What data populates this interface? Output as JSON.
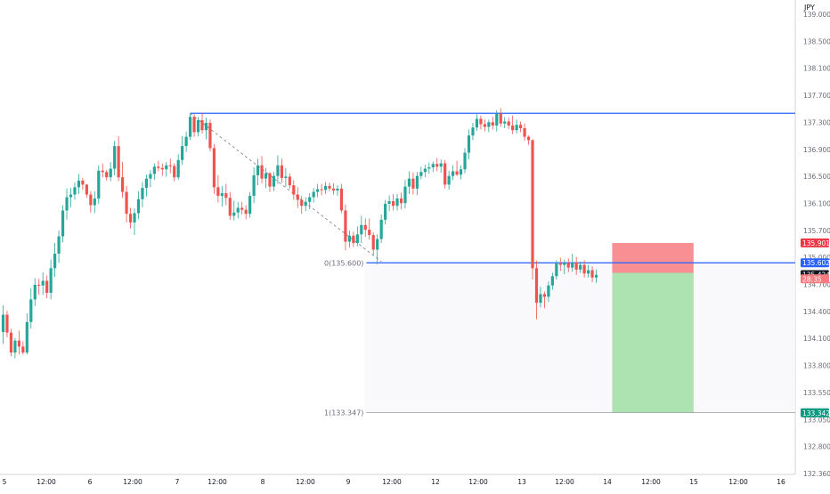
{
  "chart_data": {
    "type": "candlestick",
    "currency": "JPY",
    "ylim": [
      132.36,
      139.4
    ],
    "y_ticks": [
      "139.000",
      "138.500",
      "138.100",
      "137.700",
      "137.300",
      "136.900",
      "136.500",
      "136.100",
      "135.700",
      "135.000",
      "134.700",
      "134.400",
      "134.100",
      "133.800",
      "133.550",
      "133.050",
      "132.800",
      "132.360"
    ],
    "x_ticks": [
      "5",
      "12:00",
      "6",
      "12:00",
      "7",
      "12:00",
      "8",
      "12:00",
      "9",
      "12:00",
      "12",
      "12:00",
      "13",
      "12:00",
      "14",
      "12:00",
      "15",
      "12:00",
      "16"
    ],
    "colors": {
      "up": "#26a69a",
      "down": "#ef5350",
      "line": "#2962ff",
      "stop_zone": "#f77c80",
      "target_zone": "#a3e0a8"
    },
    "horizontal_lines": [
      {
        "value": 137.855,
        "label": "137.855",
        "color": "#2962ff"
      },
      {
        "value": 135.602,
        "label": "135.602",
        "color": "#2962ff"
      }
    ],
    "fib_levels": [
      {
        "text": "0(135.600)",
        "value": 135.6
      },
      {
        "text": "1(133.347)",
        "value": 133.347
      }
    ],
    "price_badges": [
      {
        "label": "135.901",
        "value": 135.901,
        "color": "#f23645"
      },
      {
        "label": "135.602",
        "value": 135.602,
        "color": "#2962ff"
      },
      {
        "label": "135.424",
        "value": 135.424,
        "color": "#131722"
      },
      {
        "label": "28:35",
        "value": 135.36,
        "color": "#f77c80"
      },
      {
        "label": "133.342",
        "value": 133.342,
        "color": "#089981"
      }
    ],
    "position": {
      "entry": 135.45,
      "stop": 135.901,
      "target": 133.342,
      "start_index": 153,
      "end_index": 173
    },
    "trend_line": {
      "from_index": 47,
      "from_value": 137.85,
      "to_index": 95,
      "to_value": 135.62
    },
    "candles": [
      [
        134.56,
        134.96,
        134.38,
        134.82
      ],
      [
        134.82,
        134.88,
        134.48,
        134.55
      ],
      [
        134.55,
        134.61,
        134.19,
        134.25
      ],
      [
        134.25,
        134.47,
        134.16,
        134.43
      ],
      [
        134.43,
        134.58,
        134.22,
        134.34
      ],
      [
        134.34,
        134.42,
        134.22,
        134.25
      ],
      [
        134.25,
        134.84,
        134.22,
        134.71
      ],
      [
        134.71,
        135.22,
        134.61,
        135.05
      ],
      [
        135.05,
        135.37,
        134.95,
        135.27
      ],
      [
        135.27,
        135.36,
        135.12,
        135.26
      ],
      [
        135.26,
        135.46,
        135.12,
        135.33
      ],
      [
        135.33,
        135.41,
        135.07,
        135.15
      ],
      [
        135.15,
        135.65,
        135.05,
        135.52
      ],
      [
        135.52,
        135.9,
        135.39,
        135.74
      ],
      [
        135.74,
        136.09,
        135.6,
        136.0
      ],
      [
        136.0,
        136.47,
        135.91,
        136.39
      ],
      [
        136.39,
        136.72,
        136.25,
        136.59
      ],
      [
        136.59,
        136.73,
        136.44,
        136.63
      ],
      [
        136.63,
        136.81,
        136.55,
        136.74
      ],
      [
        136.74,
        136.94,
        136.64,
        136.84
      ],
      [
        136.84,
        136.88,
        136.7,
        136.78
      ],
      [
        136.78,
        136.79,
        136.58,
        136.63
      ],
      [
        136.63,
        136.68,
        136.36,
        136.47
      ],
      [
        136.47,
        136.68,
        136.35,
        136.57
      ],
      [
        136.57,
        137.07,
        136.49,
        136.99
      ],
      [
        136.99,
        137.1,
        136.89,
        136.97
      ],
      [
        136.97,
        137.0,
        136.84,
        136.89
      ],
      [
        136.89,
        137.12,
        136.83,
        137.02
      ],
      [
        137.02,
        137.44,
        136.92,
        137.36
      ],
      [
        137.36,
        137.51,
        136.83,
        136.89
      ],
      [
        136.89,
        137.12,
        136.58,
        136.67
      ],
      [
        136.67,
        136.76,
        136.21,
        136.34
      ],
      [
        136.34,
        136.43,
        136.12,
        136.21
      ],
      [
        136.21,
        136.42,
        136.02,
        136.35
      ],
      [
        136.35,
        136.68,
        136.26,
        136.56
      ],
      [
        136.56,
        136.82,
        136.44,
        136.73
      ],
      [
        136.73,
        136.93,
        136.6,
        136.87
      ],
      [
        136.87,
        137.0,
        136.74,
        136.94
      ],
      [
        136.94,
        137.1,
        136.85,
        137.05
      ],
      [
        137.05,
        137.14,
        136.98,
        137.03
      ],
      [
        137.03,
        137.1,
        136.91,
        137.01
      ],
      [
        137.01,
        137.12,
        136.9,
        137.07
      ],
      [
        137.07,
        137.17,
        136.95,
        137.06
      ],
      [
        137.06,
        137.1,
        136.83,
        136.89
      ],
      [
        136.89,
        137.24,
        136.85,
        137.15
      ],
      [
        137.15,
        137.51,
        137.08,
        137.36
      ],
      [
        137.36,
        137.58,
        137.27,
        137.5
      ],
      [
        137.5,
        137.86,
        137.45,
        137.8
      ],
      [
        137.8,
        137.84,
        137.5,
        137.57
      ],
      [
        137.57,
        137.8,
        137.51,
        137.75
      ],
      [
        137.75,
        137.86,
        137.55,
        137.6
      ],
      [
        137.6,
        137.79,
        137.46,
        137.71
      ],
      [
        137.71,
        137.76,
        137.28,
        137.33
      ],
      [
        137.33,
        137.39,
        136.64,
        136.74
      ],
      [
        136.74,
        136.92,
        136.51,
        136.61
      ],
      [
        136.61,
        136.76,
        136.45,
        136.65
      ],
      [
        136.65,
        136.79,
        136.47,
        136.58
      ],
      [
        136.58,
        136.67,
        136.25,
        136.31
      ],
      [
        136.31,
        136.54,
        136.24,
        136.36
      ],
      [
        136.36,
        136.52,
        136.27,
        136.43
      ],
      [
        136.43,
        136.52,
        136.33,
        136.4
      ],
      [
        136.4,
        136.47,
        136.26,
        136.34
      ],
      [
        136.34,
        136.67,
        136.28,
        136.61
      ],
      [
        136.61,
        137.04,
        136.5,
        136.92
      ],
      [
        136.92,
        137.17,
        136.77,
        137.07
      ],
      [
        137.07,
        137.21,
        136.8,
        136.87
      ],
      [
        136.87,
        137.03,
        136.73,
        136.95
      ],
      [
        136.95,
        136.97,
        136.67,
        136.75
      ],
      [
        136.75,
        136.97,
        136.68,
        136.91
      ],
      [
        136.91,
        137.22,
        136.79,
        137.07
      ],
      [
        137.07,
        137.17,
        136.81,
        136.88
      ],
      [
        136.88,
        137.03,
        136.75,
        136.9
      ],
      [
        136.9,
        136.95,
        136.72,
        136.77
      ],
      [
        136.77,
        136.85,
        136.55,
        136.63
      ],
      [
        136.63,
        136.74,
        136.43,
        136.55
      ],
      [
        136.55,
        136.61,
        136.34,
        136.46
      ],
      [
        136.46,
        136.59,
        136.38,
        136.52
      ],
      [
        136.52,
        136.65,
        136.41,
        136.59
      ],
      [
        136.59,
        136.73,
        136.51,
        136.67
      ],
      [
        136.67,
        136.79,
        136.59,
        136.71
      ],
      [
        136.71,
        136.79,
        136.62,
        136.7
      ],
      [
        136.7,
        136.82,
        136.64,
        136.76
      ],
      [
        136.76,
        136.81,
        136.68,
        136.72
      ],
      [
        136.72,
        136.8,
        136.63,
        136.69
      ],
      [
        136.69,
        136.77,
        136.61,
        136.72
      ],
      [
        136.72,
        136.79,
        136.35,
        136.39
      ],
      [
        136.39,
        136.48,
        135.79,
        135.92
      ],
      [
        135.92,
        136.09,
        135.83,
        136.01
      ],
      [
        136.01,
        136.07,
        135.84,
        135.9
      ],
      [
        135.9,
        136.15,
        135.85,
        136.03
      ],
      [
        136.03,
        136.31,
        135.9,
        136.17
      ],
      [
        136.17,
        136.27,
        135.99,
        136.1
      ],
      [
        136.1,
        136.27,
        135.95,
        136.02
      ],
      [
        136.02,
        136.06,
        135.72,
        135.8
      ],
      [
        135.8,
        136.03,
        135.58,
        135.96
      ],
      [
        135.96,
        136.33,
        135.9,
        136.25
      ],
      [
        136.25,
        136.55,
        136.18,
        136.49
      ],
      [
        136.49,
        136.62,
        136.38,
        136.53
      ],
      [
        136.53,
        136.64,
        136.39,
        136.46
      ],
      [
        136.46,
        136.64,
        136.39,
        136.57
      ],
      [
        136.57,
        136.66,
        136.41,
        136.5
      ],
      [
        136.5,
        136.85,
        136.42,
        136.75
      ],
      [
        136.75,
        136.98,
        136.64,
        136.87
      ],
      [
        136.87,
        136.96,
        136.63,
        136.72
      ],
      [
        136.72,
        136.97,
        136.62,
        136.91
      ],
      [
        136.91,
        137.05,
        136.86,
        136.97
      ],
      [
        136.97,
        137.08,
        136.89,
        137.02
      ],
      [
        137.02,
        137.11,
        136.94,
        137.04
      ],
      [
        137.04,
        137.13,
        136.97,
        137.09
      ],
      [
        137.09,
        137.18,
        136.98,
        137.05
      ],
      [
        137.05,
        137.16,
        136.96,
        137.1
      ],
      [
        137.1,
        137.15,
        136.72,
        136.78
      ],
      [
        136.78,
        136.99,
        136.7,
        136.91
      ],
      [
        136.91,
        137.07,
        136.85,
        136.98
      ],
      [
        136.98,
        137.14,
        136.91,
        136.93
      ],
      [
        136.93,
        137.07,
        136.86,
        137.01
      ],
      [
        137.01,
        137.33,
        136.95,
        137.26
      ],
      [
        137.26,
        137.61,
        137.16,
        137.52
      ],
      [
        137.52,
        137.71,
        137.45,
        137.64
      ],
      [
        137.64,
        137.84,
        137.59,
        137.77
      ],
      [
        137.77,
        137.82,
        137.61,
        137.69
      ],
      [
        137.69,
        137.76,
        137.58,
        137.65
      ],
      [
        137.65,
        137.76,
        137.57,
        137.72
      ],
      [
        137.72,
        137.8,
        137.61,
        137.67
      ],
      [
        137.67,
        137.9,
        137.58,
        137.85
      ],
      [
        137.85,
        137.93,
        137.65,
        137.7
      ],
      [
        137.7,
        137.8,
        137.63,
        137.73
      ],
      [
        137.73,
        137.79,
        137.62,
        137.67
      ],
      [
        137.67,
        137.82,
        137.54,
        137.6
      ],
      [
        137.6,
        137.76,
        137.55,
        137.68
      ],
      [
        137.68,
        137.73,
        137.57,
        137.63
      ],
      [
        137.63,
        137.7,
        137.44,
        137.5
      ],
      [
        137.5,
        137.52,
        137.38,
        137.45
      ],
      [
        137.45,
        137.46,
        135.35,
        135.52
      ],
      [
        135.52,
        135.63,
        134.75,
        135.0
      ],
      [
        135.0,
        135.24,
        134.93,
        135.13
      ],
      [
        135.13,
        135.17,
        134.92,
        135.09
      ],
      [
        135.09,
        135.32,
        135.01,
        135.26
      ],
      [
        135.26,
        135.45,
        135.2,
        135.4
      ],
      [
        135.4,
        135.64,
        135.35,
        135.59
      ],
      [
        135.59,
        135.68,
        135.48,
        135.57
      ],
      [
        135.57,
        135.65,
        135.43,
        135.6
      ],
      [
        135.6,
        135.67,
        135.46,
        135.53
      ],
      [
        135.53,
        135.74,
        135.47,
        135.61
      ],
      [
        135.61,
        135.69,
        135.42,
        135.5
      ],
      [
        135.5,
        135.62,
        135.45,
        135.57
      ],
      [
        135.57,
        135.64,
        135.38,
        135.44
      ],
      [
        135.44,
        135.57,
        135.38,
        135.49
      ],
      [
        135.49,
        135.55,
        135.31,
        135.38
      ],
      [
        135.38,
        135.5,
        135.3,
        135.42
      ]
    ]
  }
}
